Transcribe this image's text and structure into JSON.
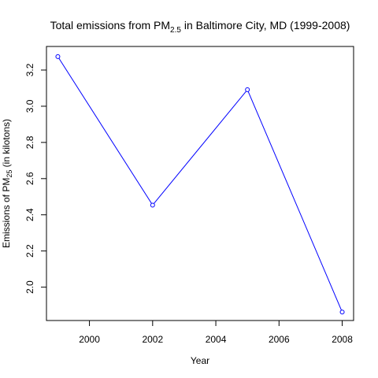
{
  "chart_data": {
    "type": "line",
    "title": {
      "prefix": "Total emissions from PM",
      "subscript": "2.5",
      "suffix": " in Baltimore City, MD (1999-2008)"
    },
    "xlabel": "Year",
    "ylabel": {
      "prefix": "Emissions of PM",
      "subscript": "25",
      "suffix": " (in kilotons)"
    },
    "x_ticks": [
      2000,
      2002,
      2004,
      2006,
      2008
    ],
    "x_tick_labels": [
      "2000",
      "2002",
      "2004",
      "2006",
      "2008"
    ],
    "y_ticks": [
      2.0,
      2.2,
      2.4,
      2.6,
      2.8,
      3.0,
      3.2
    ],
    "y_tick_labels": [
      "2.0",
      "2.2",
      "2.4",
      "2.6",
      "2.8",
      "3.0",
      "3.2"
    ],
    "xlim": [
      1998.64,
      2008.36
    ],
    "ylim": [
      1.8157,
      3.3304
    ],
    "grid": false,
    "series": [
      {
        "x": [
          1999,
          2002,
          2005,
          2008
        ],
        "y": [
          3.2742,
          2.4536,
          3.0914,
          1.8623
        ],
        "color": "#0000ff",
        "marker": "open-circle"
      }
    ]
  }
}
